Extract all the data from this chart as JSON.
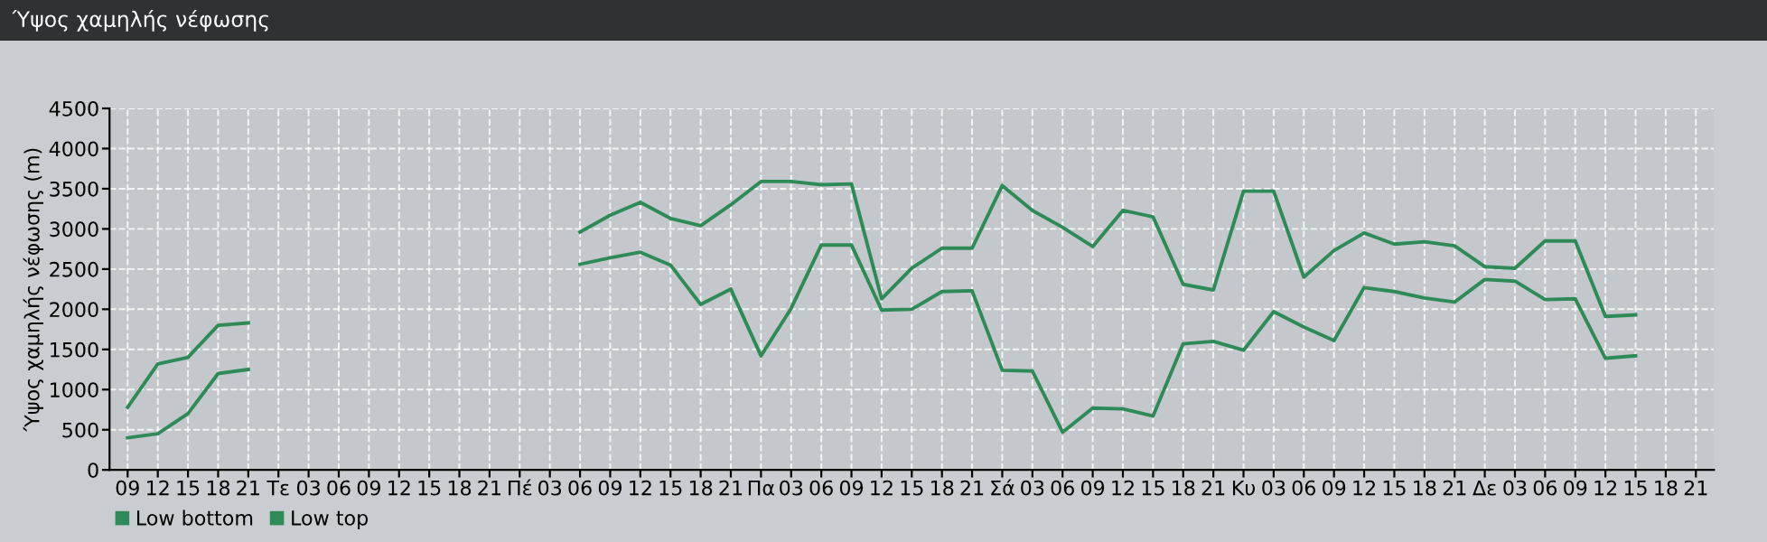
{
  "chart_data": {
    "type": "line",
    "title": "Ύψος χαμηλής νέφωσης",
    "ylabel": "Ύψος χαμηλής νέφωσης (m)",
    "categories": [
      "09",
      "12",
      "15",
      "18",
      "21",
      "Τε",
      "03",
      "06",
      "09",
      "12",
      "15",
      "18",
      "21",
      "Πέ",
      "03",
      "06",
      "09",
      "12",
      "15",
      "18",
      "21",
      "Πα",
      "03",
      "06",
      "09",
      "12",
      "15",
      "18",
      "21",
      "Σά",
      "03",
      "06",
      "09",
      "12",
      "15",
      "18",
      "21",
      "Κυ",
      "03",
      "06",
      "09",
      "12",
      "15",
      "18",
      "21",
      "Δε",
      "03",
      "06",
      "09",
      "12",
      "15",
      "18",
      "21"
    ],
    "series": [
      {
        "name": "Low bottom",
        "color": "#2e8b57",
        "values": [
          400,
          450,
          700,
          1200,
          1250,
          null,
          null,
          null,
          null,
          null,
          null,
          null,
          null,
          null,
          null,
          2560,
          2640,
          2710,
          2550,
          2060,
          2250,
          1420,
          2010,
          2800,
          2800,
          1990,
          2000,
          2220,
          2230,
          1240,
          1230,
          470,
          770,
          760,
          670,
          1570,
          1600,
          1490,
          1970,
          1780,
          1610,
          2270,
          2220,
          2140,
          2090,
          2370,
          2350,
          2120,
          2130,
          1390,
          1420,
          null,
          null
        ]
      },
      {
        "name": "Low top",
        "color": "#2e8b57",
        "values": [
          780,
          1320,
          1400,
          1800,
          1830,
          null,
          null,
          null,
          null,
          null,
          null,
          null,
          null,
          null,
          null,
          2960,
          3170,
          3330,
          3130,
          3040,
          3300,
          3590,
          3590,
          3550,
          3560,
          2130,
          2510,
          2760,
          2760,
          3540,
          3230,
          3020,
          2780,
          3230,
          3150,
          2310,
          2240,
          3470,
          3470,
          2400,
          2730,
          2950,
          2810,
          2840,
          2790,
          2530,
          2510,
          2850,
          2850,
          1910,
          1930,
          null,
          null
        ]
      }
    ],
    "ylim": [
      0,
      4500
    ],
    "yticks": [
      0,
      500,
      1000,
      1500,
      2000,
      2500,
      3000,
      3500,
      4000,
      4500
    ],
    "grid": true,
    "legend": "bottom left",
    "marker": "none",
    "line_style": "solid"
  }
}
